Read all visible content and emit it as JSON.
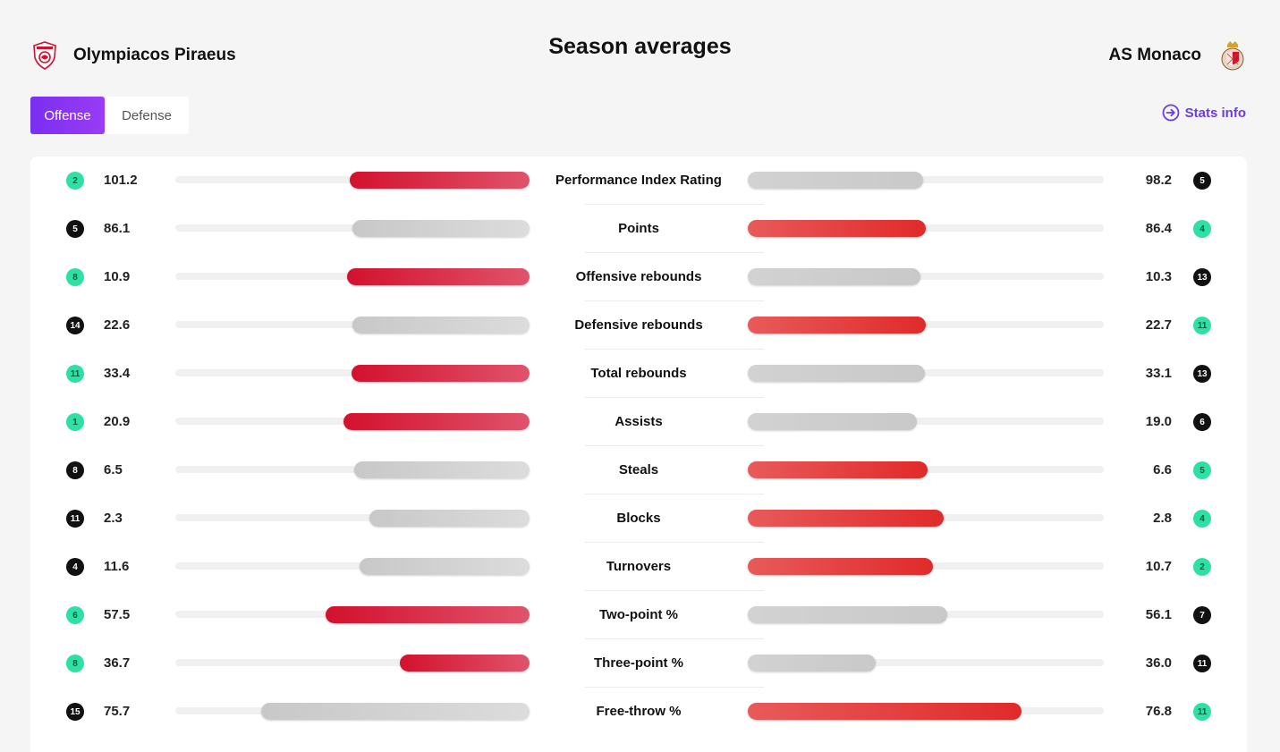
{
  "header": {
    "title": "Season averages",
    "home_team": "Olympiacos Piraeus",
    "away_team": "AS Monaco",
    "home_logo_icon": "olympiacos-crest-icon",
    "away_logo_icon": "monaco-crest-icon"
  },
  "tabs": [
    {
      "label": "Offense",
      "active": true
    },
    {
      "label": "Defense",
      "active": false
    }
  ],
  "stats_info": {
    "label": "Stats info",
    "icon": "arrow-circle-right-icon"
  },
  "colors": {
    "accent": "#7a2ff0",
    "winner_bar": "#d3112e",
    "loser_bar": "#cccccc",
    "top_rank": "#2de0a4",
    "low_rank": "#111111"
  },
  "stats": [
    {
      "label": "Performance Index Rating",
      "home": {
        "value": "101.2",
        "rank": "2",
        "good": true
      },
      "away": {
        "value": "98.2",
        "rank": "5",
        "good": false
      },
      "home_share": 0.507,
      "away_share": 0.493,
      "winner": "home"
    },
    {
      "label": "Points",
      "home": {
        "value": "86.1",
        "rank": "5",
        "good": false
      },
      "away": {
        "value": "86.4",
        "rank": "4",
        "good": true
      },
      "home_share": 0.499,
      "away_share": 0.501,
      "winner": "away"
    },
    {
      "label": "Offensive rebounds",
      "home": {
        "value": "10.9",
        "rank": "8",
        "good": true
      },
      "away": {
        "value": "10.3",
        "rank": "13",
        "good": false
      },
      "home_share": 0.514,
      "away_share": 0.486,
      "winner": "home"
    },
    {
      "label": "Defensive rebounds",
      "home": {
        "value": "22.6",
        "rank": "14",
        "good": false
      },
      "away": {
        "value": "22.7",
        "rank": "11",
        "good": true
      },
      "home_share": 0.499,
      "away_share": 0.501,
      "winner": "away"
    },
    {
      "label": "Total rebounds",
      "home": {
        "value": "33.4",
        "rank": "11",
        "good": true
      },
      "away": {
        "value": "33.1",
        "rank": "13",
        "good": false
      },
      "home_share": 0.502,
      "away_share": 0.498,
      "winner": "home"
    },
    {
      "label": "Assists",
      "home": {
        "value": "20.9",
        "rank": "1",
        "good": true
      },
      "away": {
        "value": "19.0",
        "rank": "6",
        "good": false
      },
      "home_share": 0.524,
      "away_share": 0.476,
      "winner": "home"
    },
    {
      "label": "Steals",
      "home": {
        "value": "6.5",
        "rank": "8",
        "good": false
      },
      "away": {
        "value": "6.6",
        "rank": "5",
        "good": true
      },
      "home_share": 0.496,
      "away_share": 0.504,
      "winner": "away"
    },
    {
      "label": "Blocks",
      "home": {
        "value": "2.3",
        "rank": "11",
        "good": false
      },
      "away": {
        "value": "2.8",
        "rank": "4",
        "good": true
      },
      "home_share": 0.451,
      "away_share": 0.549,
      "winner": "away"
    },
    {
      "label": "Turnovers",
      "home": {
        "value": "11.6",
        "rank": "4",
        "good": false
      },
      "away": {
        "value": "10.7",
        "rank": "2",
        "good": true
      },
      "home_share": 0.48,
      "away_share": 0.52,
      "winner": "away"
    },
    {
      "label": "Two-point %",
      "home": {
        "value": "57.5",
        "rank": "6",
        "good": true
      },
      "away": {
        "value": "56.1",
        "rank": "7",
        "good": false
      },
      "home_share": 0.575,
      "away_share": 0.561,
      "winner": "home"
    },
    {
      "label": "Three-point %",
      "home": {
        "value": "36.7",
        "rank": "8",
        "good": true
      },
      "away": {
        "value": "36.0",
        "rank": "11",
        "good": false
      },
      "home_share": 0.367,
      "away_share": 0.36,
      "winner": "home"
    },
    {
      "label": "Free-throw %",
      "home": {
        "value": "75.7",
        "rank": "15",
        "good": false
      },
      "away": {
        "value": "76.8",
        "rank": "11",
        "good": true
      },
      "home_share": 0.757,
      "away_share": 0.768,
      "winner": "away"
    }
  ]
}
